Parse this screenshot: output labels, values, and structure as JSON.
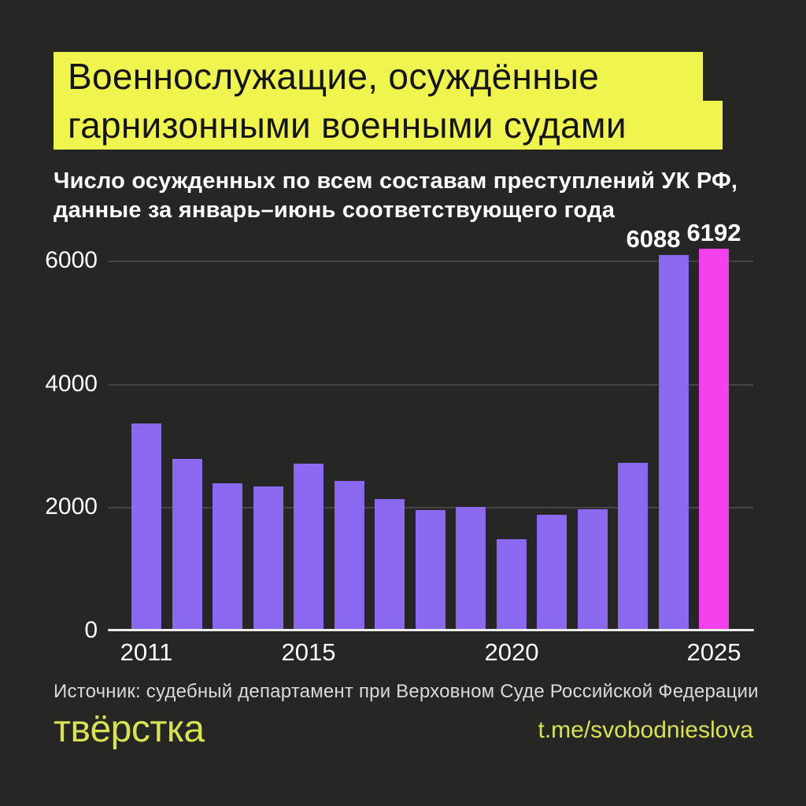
{
  "title": {
    "line1": "Военнослужащие, осуждённые",
    "line2": "гарнизонными военными судами"
  },
  "subtitle": {
    "line1": "Число осужденных по всем составам преступлений УК РФ,",
    "line2": "данные за январь–июнь соответствующего года"
  },
  "source_text": "Источник: судебный департамент при Верховном Суде Российской Федерации",
  "footer": {
    "logo_text": "твёрстка",
    "link_text": "t.me/svobodnieslova"
  },
  "colors": {
    "background": "#262625",
    "title_highlight": "#eff54d",
    "title_text": "#141414",
    "bar": "#8a68ef",
    "bar_accent": "#f541ec",
    "accent_text": "#d9e24f",
    "grid": "#454542",
    "axis": "#ececec",
    "text": "#ffffff",
    "muted_text": "#dadada"
  },
  "chart_data": {
    "type": "bar",
    "title": "Военнослужащие, осуждённые гарнизонными военными судами",
    "subtitle": "Число осужденных по всем составам преступлений УК РФ, данные за январь–июнь соответствующего года",
    "categories": [
      "2011",
      "2012",
      "2013",
      "2014",
      "2015",
      "2016",
      "2017",
      "2018",
      "2019",
      "2020",
      "2021",
      "2022",
      "2023",
      "2024",
      "2025"
    ],
    "values": [
      3350,
      2780,
      2390,
      2340,
      2710,
      2420,
      2130,
      1950,
      2000,
      1480,
      1880,
      1970,
      2720,
      6088,
      6192
    ],
    "annotations": [
      {
        "category": "2024",
        "label": "6088"
      },
      {
        "category": "2025",
        "label": "6192"
      }
    ],
    "xlabel": "",
    "ylabel": "",
    "ylim": [
      0,
      6400
    ],
    "yticks": [
      0,
      2000,
      4000,
      6000
    ],
    "xticks": [
      "2011",
      "2015",
      "2020",
      "2025"
    ],
    "grid": true,
    "legend": false,
    "highlight_last_bar": true
  }
}
